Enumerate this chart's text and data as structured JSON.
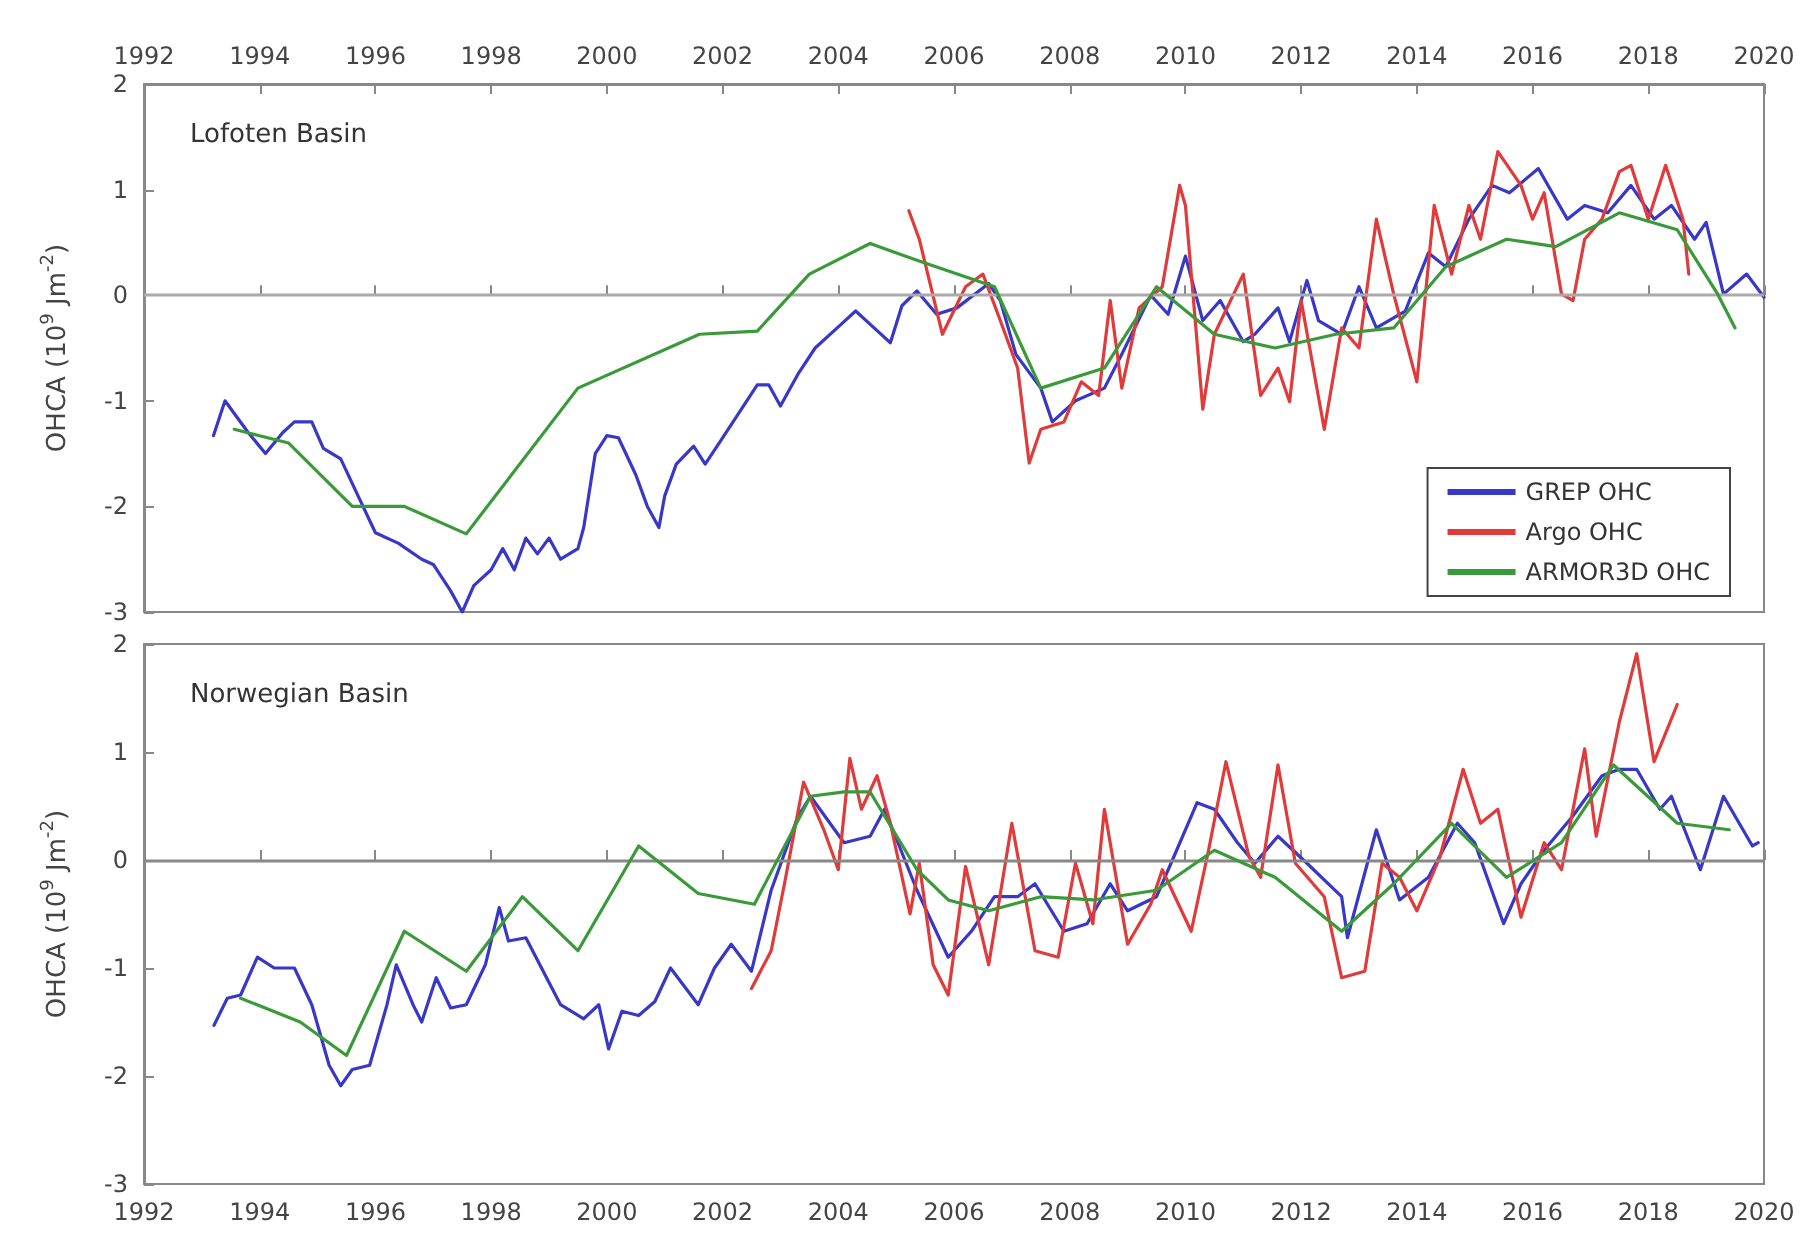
{
  "chart_data": [
    {
      "type": "line",
      "title": "Lofoten Basin",
      "ylabel": "OHCA (10$^{9}$ Jm$^{-2}$)",
      "xlim": [
        1992,
        2020
      ],
      "xticks": [
        1992,
        1994,
        1996,
        1998,
        2000,
        2002,
        2004,
        2006,
        2008,
        2010,
        2012,
        2014,
        2016,
        2018,
        2020
      ],
      "tick_labels": "y",
      "x2lim": [
        1992,
        2020
      ],
      "x2ticks": [
        1992,
        1994,
        1996,
        1998,
        2000,
        2002,
        2004,
        2006,
        2008,
        2010,
        2012,
        2014,
        2016,
        2018,
        2020
      ],
      "ylim": [
        -3,
        2
      ],
      "yticks": [
        -3,
        -2,
        -1,
        0,
        1,
        2
      ],
      "grid": false,
      "legend": "bottom right",
      "marker": "none",
      "ref_lines": [
        {
          "axis": "y",
          "value": 0,
          "color": "#aaaaaa"
        }
      ],
      "series": [
        {
          "name": "GREP OHC",
          "color": "#3838c8",
          "x": [
            1993.2,
            1993.4,
            1993.8,
            1994.1,
            1994.4,
            1994.6,
            1994.9,
            1995.1,
            1995.4,
            1995.7,
            1996.0,
            1996.4,
            1996.8,
            1997.0,
            1997.3,
            1997.5,
            1997.7,
            1998.0,
            1998.2,
            1998.4,
            1998.6,
            1998.8,
            1999.0,
            1999.2,
            1999.5,
            1999.6,
            1999.8,
            2000.0,
            2000.2,
            2000.5,
            2000.7,
            2000.9,
            2001.0,
            2001.2,
            2001.5,
            2001.7,
            2002.0,
            2002.3,
            2002.6,
            2002.8,
            2003.0,
            2003.3,
            2003.6,
            2004.0,
            2004.3,
            2004.6,
            2004.9,
            2005.1,
            2005.36,
            2005.7,
            2006.05,
            2006.6,
            2006.8,
            2007.07,
            2007.5,
            2007.7,
            2008.1,
            2008.6,
            2008.9,
            2009.4,
            2009.7,
            2010.0,
            2010.3,
            2010.6,
            2011.0,
            2011.2,
            2011.6,
            2011.8,
            2012.1,
            2012.3,
            2012.7,
            2013.0,
            2013.3,
            2013.8,
            2014.2,
            2014.5,
            2014.9,
            2015.3,
            2015.6,
            2016.1,
            2016.6,
            2016.9,
            2017.3,
            2017.7,
            2018.1,
            2018.4,
            2018.8,
            2019.0,
            2019.3,
            2019.7,
            2020.0
          ],
          "values": [
            -1.33,
            -1.0,
            -1.3,
            -1.5,
            -1.3,
            -1.2,
            -1.2,
            -1.45,
            -1.55,
            -1.9,
            -2.25,
            -2.35,
            -2.5,
            -2.55,
            -2.8,
            -3.0,
            -2.75,
            -2.6,
            -2.4,
            -2.6,
            -2.3,
            -2.45,
            -2.3,
            -2.5,
            -2.4,
            -2.2,
            -1.5,
            -1.33,
            -1.35,
            -1.7,
            -2.0,
            -2.2,
            -1.9,
            -1.6,
            -1.43,
            -1.6,
            -1.35,
            -1.1,
            -0.85,
            -0.85,
            -1.05,
            -0.75,
            -0.5,
            -0.3,
            -0.15,
            -0.3,
            -0.45,
            -0.1,
            0.04,
            -0.18,
            -0.12,
            0.11,
            -0.05,
            -0.56,
            -0.88,
            -1.2,
            -1.0,
            -0.88,
            -0.56,
            0.0,
            -0.18,
            0.37,
            -0.24,
            -0.05,
            -0.44,
            -0.37,
            -0.12,
            -0.44,
            0.14,
            -0.24,
            -0.37,
            0.08,
            -0.31,
            -0.15,
            0.4,
            0.27,
            0.72,
            1.04,
            0.97,
            1.2,
            0.72,
            0.85,
            0.78,
            1.04,
            0.72,
            0.85,
            0.53,
            0.69,
            0.01,
            0.2,
            -0.02
          ]
        },
        {
          "name": "Argo OHC",
          "color": "#e03a3a",
          "x": [
            2005.22,
            2005.4,
            2005.6,
            2005.8,
            2006.2,
            2006.5,
            2006.8,
            2007.1,
            2007.3,
            2007.5,
            2007.9,
            2008.2,
            2008.5,
            2008.7,
            2008.9,
            2009.2,
            2009.6,
            2009.9,
            2010.0,
            2010.3,
            2010.5,
            2011.0,
            2011.3,
            2011.6,
            2011.8,
            2012.0,
            2012.4,
            2012.7,
            2013.0,
            2013.3,
            2013.6,
            2014.0,
            2014.3,
            2014.6,
            2014.9,
            2015.1,
            2015.4,
            2015.8,
            2016.0,
            2016.2,
            2016.5,
            2016.7,
            2016.9,
            2017.2,
            2017.5,
            2017.7,
            2018.0,
            2018.3,
            2018.6,
            2018.7
          ],
          "values": [
            0.8,
            0.53,
            0.08,
            -0.37,
            0.08,
            0.2,
            -0.24,
            -0.69,
            -1.59,
            -1.27,
            -1.2,
            -0.82,
            -0.95,
            -0.05,
            -0.88,
            -0.12,
            0.08,
            1.04,
            0.85,
            -1.08,
            -0.37,
            0.2,
            -0.95,
            -0.69,
            -1.01,
            -0.05,
            -1.27,
            -0.31,
            -0.5,
            0.72,
            0.01,
            -0.82,
            0.85,
            0.2,
            0.85,
            0.53,
            1.36,
            1.04,
            0.72,
            0.97,
            0.01,
            -0.05,
            0.53,
            0.72,
            1.17,
            1.23,
            0.72,
            1.23,
            0.72,
            0.2
          ]
        },
        {
          "name": "ARMOR3D OHC",
          "color": "#3a9a3a",
          "x": [
            1993.56,
            1994.5,
            1995.6,
            1996.5,
            1997.57,
            1999.5,
            2001.6,
            2002.6,
            2003.5,
            2004.55,
            2005.36,
            2006.7,
            2007.5,
            2008.6,
            2009.5,
            2010.5,
            2011.55,
            2012.6,
            2013.6,
            2014.5,
            2015.55,
            2016.4,
            2017.5,
            2018.5,
            2019.2,
            2019.5
          ],
          "values": [
            -1.27,
            -1.4,
            -2.0,
            -2.0,
            -2.26,
            -0.88,
            -0.37,
            -0.34,
            0.2,
            0.49,
            0.33,
            0.08,
            -0.88,
            -0.69,
            0.08,
            -0.37,
            -0.5,
            -0.37,
            -0.31,
            0.27,
            0.53,
            0.46,
            0.78,
            0.62,
            0.01,
            -0.31
          ]
        }
      ]
    },
    {
      "type": "line",
      "title": "Norwegian Basin",
      "ylabel": "OHCA (10$^{9}$ Jm$^{-2}$)",
      "xlim": [
        1992,
        2020
      ],
      "xticks": [
        1992,
        1994,
        1996,
        1998,
        2000,
        2002,
        2004,
        2006,
        2008,
        2010,
        2012,
        2014,
        2016,
        2018,
        2020
      ],
      "ylim": [
        -3,
        2
      ],
      "yticks": [
        -3,
        -2,
        -1,
        0,
        1,
        2
      ],
      "grid": false,
      "marker": "none",
      "ref_lines": [
        {
          "axis": "y",
          "value": 0,
          "color": "#888888"
        }
      ],
      "series": [
        {
          "color": "#3838c8",
          "x": [
            1993.21,
            1993.44,
            1993.67,
            1993.96,
            1994.25,
            1994.6,
            1994.9,
            1995.2,
            1995.4,
            1995.6,
            1995.9,
            1996.2,
            1996.36,
            1996.65,
            1996.8,
            1997.05,
            1997.3,
            1997.57,
            1997.9,
            1998.14,
            1998.3,
            1998.6,
            1999.2,
            1999.6,
            1999.86,
            2000.03,
            2000.26,
            2000.55,
            2000.83,
            2001.1,
            2001.58,
            2001.86,
            2002.15,
            2002.5,
            2002.84,
            2003.3,
            2003.52,
            2004.1,
            2004.55,
            2004.8,
            2005.36,
            2005.9,
            2006.3,
            2006.7,
            2007.1,
            2007.4,
            2007.9,
            2008.3,
            2008.7,
            2009.0,
            2009.5,
            2009.8,
            2010.2,
            2010.5,
            2010.9,
            2011.2,
            2011.6,
            2012.1,
            2012.7,
            2012.8,
            2013.3,
            2013.7,
            2014.2,
            2014.7,
            2015.0,
            2015.5,
            2015.8,
            2016.2,
            2016.7,
            2017.2,
            2017.5,
            2017.8,
            2018.2,
            2018.4,
            2018.9,
            2019.3,
            2019.8,
            2019.9
          ],
          "values": [
            -1.53,
            -1.28,
            -1.25,
            -0.9,
            -1.0,
            -1.0,
            -1.34,
            -1.9,
            -2.09,
            -1.94,
            -1.9,
            -1.34,
            -0.97,
            -1.34,
            -1.5,
            -1.09,
            -1.37,
            -1.34,
            -0.97,
            -0.44,
            -0.75,
            -0.72,
            -1.34,
            -1.47,
            -1.34,
            -1.75,
            -1.4,
            -1.44,
            -1.31,
            -1.0,
            -1.34,
            -1.0,
            -0.78,
            -1.03,
            -0.28,
            0.4,
            0.59,
            0.16,
            0.22,
            0.47,
            -0.28,
            -0.9,
            -0.66,
            -0.34,
            -0.34,
            -0.22,
            -0.66,
            -0.59,
            -0.22,
            -0.47,
            -0.34,
            0.03,
            0.53,
            0.47,
            0.16,
            -0.03,
            0.22,
            -0.03,
            -0.34,
            -0.72,
            0.28,
            -0.37,
            -0.16,
            0.34,
            0.16,
            -0.59,
            -0.22,
            0.09,
            0.41,
            0.78,
            0.84,
            0.84,
            0.47,
            0.59,
            -0.09,
            0.59,
            0.13,
            0.16
          ]
        },
        {
          "color": "#e03a3a",
          "x": [
            2002.5,
            2002.84,
            2003.07,
            2003.4,
            2003.75,
            2004.0,
            2004.2,
            2004.4,
            2004.67,
            2004.9,
            2005.24,
            2005.4,
            2005.64,
            2005.9,
            2006.2,
            2006.6,
            2007.0,
            2007.4,
            2007.8,
            2008.1,
            2008.4,
            2008.6,
            2009.0,
            2009.4,
            2009.6,
            2010.1,
            2010.4,
            2010.7,
            2011.1,
            2011.3,
            2011.6,
            2011.9,
            2012.4,
            2012.7,
            2013.1,
            2013.4,
            2013.7,
            2014.0,
            2014.4,
            2014.8,
            2015.1,
            2015.4,
            2015.8,
            2016.2,
            2016.5,
            2016.9,
            2017.1,
            2017.5,
            2017.8,
            2018.1,
            2018.5
          ],
          "values": [
            -1.19,
            -0.84,
            -0.22,
            0.72,
            0.28,
            -0.09,
            0.94,
            0.47,
            0.78,
            0.34,
            -0.5,
            -0.03,
            -0.97,
            -1.25,
            -0.06,
            -0.97,
            0.34,
            -0.84,
            -0.9,
            -0.03,
            -0.59,
            0.47,
            -0.78,
            -0.41,
            -0.09,
            -0.66,
            0.09,
            0.91,
            0.03,
            -0.16,
            0.88,
            -0.03,
            -0.34,
            -1.09,
            -1.03,
            -0.03,
            -0.16,
            -0.47,
            0.03,
            0.84,
            0.34,
            0.47,
            -0.53,
            0.16,
            -0.09,
            1.03,
            0.22,
            1.28,
            1.91,
            0.91,
            1.44
          ]
        },
        {
          "color": "#3a9a3a",
          "x": [
            1993.67,
            1994.7,
            1995.5,
            1996.5,
            1997.57,
            1998.54,
            1999.5,
            2000.55,
            2001.58,
            2002.55,
            2003.52,
            2004.1,
            2004.55,
            2005.36,
            2005.9,
            2006.6,
            2007.5,
            2008.4,
            2009.5,
            2010.5,
            2011.55,
            2012.7,
            2013.6,
            2014.6,
            2015.55,
            2016.5,
            2017.4,
            2018.5,
            2019.4
          ],
          "values": [
            -1.28,
            -1.5,
            -1.81,
            -0.66,
            -1.03,
            -0.34,
            -0.84,
            0.13,
            -0.31,
            -0.41,
            0.59,
            0.63,
            0.63,
            -0.09,
            -0.37,
            -0.47,
            -0.34,
            -0.37,
            -0.28,
            0.09,
            -0.16,
            -0.66,
            -0.22,
            0.34,
            -0.16,
            0.16,
            0.88,
            0.34,
            0.28
          ]
        }
      ]
    }
  ]
}
